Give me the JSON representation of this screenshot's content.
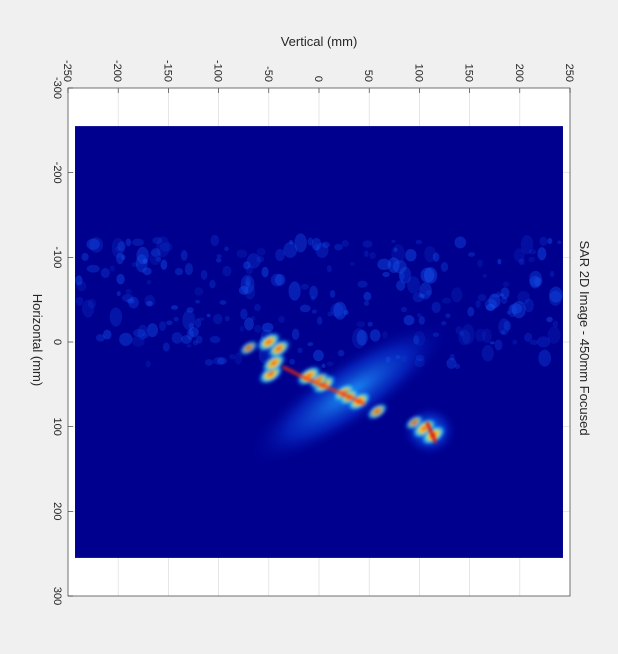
{
  "chart_data": {
    "type": "heatmap",
    "title": "SAR 2D Image - 450mm Focused",
    "xlabel": "Vertical (mm)",
    "ylabel": "Horizontal (mm)",
    "xlim": [
      -250,
      250
    ],
    "ylim": [
      -300,
      300
    ],
    "x_ticks": [
      "-250",
      "-200",
      "-150",
      "-100",
      "-50",
      "0",
      "50",
      "100",
      "150",
      "200",
      "250"
    ],
    "y_ticks": [
      "-300",
      "-200",
      "-100",
      "0",
      "100",
      "200",
      "300"
    ],
    "image_extent": {
      "vertical": [
        -243,
        243
      ],
      "horizontal": [
        -255,
        255
      ]
    },
    "grid": true,
    "colormap": "jet",
    "background_color": "#00008f",
    "hot_spots": [
      {
        "vertical": -48,
        "horizontal": 38,
        "intensity": 0.95
      },
      {
        "vertical": -45,
        "horizontal": 25,
        "intensity": 0.9
      },
      {
        "vertical": -40,
        "horizontal": 8,
        "intensity": 0.85
      },
      {
        "vertical": -50,
        "horizontal": 0,
        "intensity": 0.9
      },
      {
        "vertical": -10,
        "horizontal": 40,
        "intensity": 0.95
      },
      {
        "vertical": 5,
        "horizontal": 50,
        "intensity": 0.9
      },
      {
        "vertical": 25,
        "horizontal": 60,
        "intensity": 0.85
      },
      {
        "vertical": 40,
        "horizontal": 70,
        "intensity": 0.9
      },
      {
        "vertical": 58,
        "horizontal": 82,
        "intensity": 0.7
      },
      {
        "vertical": 105,
        "horizontal": 102,
        "intensity": 0.95
      },
      {
        "vertical": 114,
        "horizontal": 110,
        "intensity": 0.95
      },
      {
        "vertical": 95,
        "horizontal": 95,
        "intensity": 0.55
      },
      {
        "vertical": -70,
        "horizontal": 7,
        "intensity": 0.55
      },
      {
        "vertical": 0,
        "horizontal": 45,
        "intensity": 0.7
      },
      {
        "vertical": 30,
        "horizontal": 65,
        "intensity": 0.7
      }
    ]
  }
}
